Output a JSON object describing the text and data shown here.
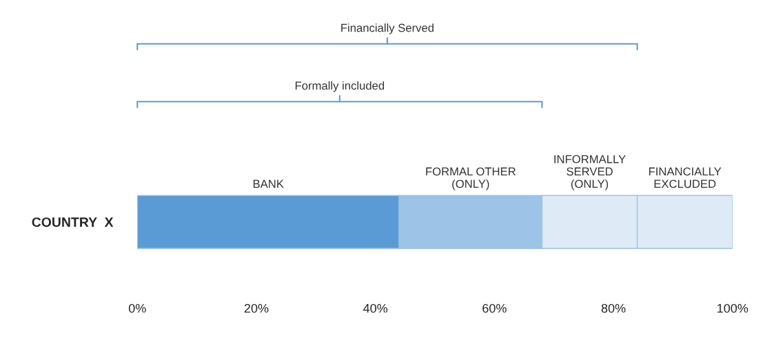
{
  "chart_data": {
    "type": "bar",
    "orientation": "horizontal",
    "stacked": true,
    "categories": [
      "COUNTRY  X"
    ],
    "series": [
      {
        "name": "BANK",
        "color": "#5b9bd5",
        "values": [
          44
        ]
      },
      {
        "name": "FORMAL OTHER\n(ONLY)",
        "color": "#9dc3e6",
        "values": [
          24
        ]
      },
      {
        "name": "INFORMALLY\nSERVED\n(ONLY)",
        "color": "#deebf7",
        "values": [
          16
        ]
      },
      {
        "name": "FINANCIALLY\nEXCLUDED",
        "color": "#deebf7",
        "values": [
          16
        ]
      }
    ],
    "annotations": [
      "Financially Served",
      "Formally included"
    ],
    "xlim": [
      0,
      100
    ],
    "xticks": [
      {
        "value": 0,
        "label": "0%"
      },
      {
        "value": 20,
        "label": "20%"
      },
      {
        "value": 40,
        "label": "40%"
      },
      {
        "value": 60,
        "label": "60%"
      },
      {
        "value": 80,
        "label": "80%"
      },
      {
        "value": 100,
        "label": "100%"
      }
    ],
    "grid": false,
    "legend": false
  }
}
